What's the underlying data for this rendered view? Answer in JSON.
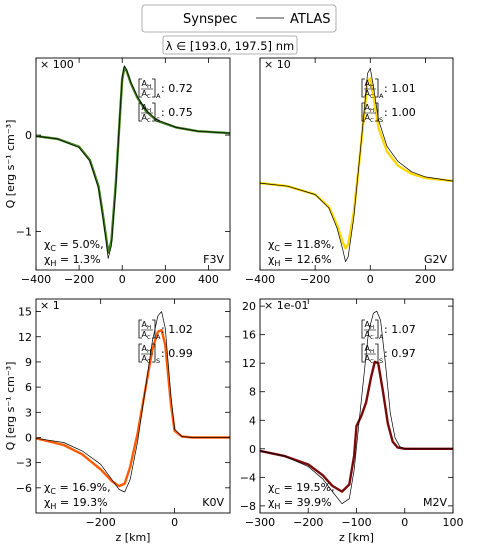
{
  "legend": {
    "items": [
      {
        "name": "Synspec",
        "kind": "gradient",
        "colors": [
          "#9acd32",
          "#ffd700",
          "#ff6a00",
          "#8b0000"
        ]
      },
      {
        "name": "ATLAS",
        "kind": "line",
        "color": "#000000"
      }
    ]
  },
  "wavelength_label": "λ ∈ [193.0, 197.5] nm",
  "chart_data": [
    {
      "type": "line",
      "star": "F3V",
      "scale": "× 100",
      "ylabel": "Q [erg s⁻¹ cm⁻³]",
      "xlabel": "",
      "xlim": [
        -400,
        500
      ],
      "ylim": [
        -1.4,
        0.8
      ],
      "xticks": [
        -400,
        -200,
        0,
        200,
        400
      ],
      "xtick_labels": [
        "−400",
        "−200",
        "0",
        "200",
        "400"
      ],
      "yticks": [
        -1,
        0
      ],
      "ytick_labels": [
        "−1",
        "0"
      ],
      "ratio_A": "0.72",
      "ratio_S": "0.75",
      "chi_C": "χC = 5.0%,",
      "chi_H": "χH = 1.3%",
      "synspec_color": "#3f7f1c",
      "series": [
        {
          "name": "ATLAS",
          "x": [
            -400,
            -300,
            -200,
            -150,
            -110,
            -90,
            -75,
            -65,
            -50,
            -30,
            -10,
            0,
            10,
            20,
            40,
            70,
            110,
            160,
            250,
            350,
            500
          ],
          "y": [
            -0.01,
            -0.04,
            -0.13,
            -0.27,
            -0.55,
            -0.85,
            -1.1,
            -1.28,
            -1.15,
            -0.55,
            0.25,
            0.6,
            0.72,
            0.68,
            0.55,
            0.4,
            0.26,
            0.16,
            0.08,
            0.04,
            0.02
          ]
        },
        {
          "name": "Synspec",
          "x": [
            -400,
            -300,
            -200,
            -150,
            -110,
            -90,
            -75,
            -65,
            -50,
            -30,
            -10,
            0,
            10,
            20,
            40,
            70,
            110,
            160,
            250,
            350,
            500
          ],
          "y": [
            -0.01,
            -0.04,
            -0.12,
            -0.26,
            -0.53,
            -0.82,
            -1.06,
            -1.22,
            -1.1,
            -0.5,
            0.23,
            0.58,
            0.7,
            0.67,
            0.54,
            0.39,
            0.25,
            0.15,
            0.08,
            0.04,
            0.02
          ]
        }
      ]
    },
    {
      "type": "line",
      "star": "G2V",
      "scale": "× 10",
      "ylabel": "",
      "xlabel": "",
      "xlim": [
        -400,
        300
      ],
      "ylim": [
        -0.85,
        1.2
      ],
      "xticks": [
        -400,
        -200,
        0,
        200
      ],
      "xtick_labels": [
        "−400",
        "−200",
        "0",
        "200"
      ],
      "yticks": [],
      "ytick_labels": [],
      "ratio_A": "1.01",
      "ratio_S": "1.00",
      "chi_C": "χC = 11.8%,",
      "chi_H": "χH = 12.6%",
      "synspec_color": "#ffd700",
      "series": [
        {
          "name": "ATLAS",
          "x": [
            -400,
            -300,
            -200,
            -150,
            -120,
            -100,
            -90,
            -80,
            -60,
            -40,
            -20,
            -10,
            0,
            10,
            30,
            60,
            100,
            150,
            200,
            300
          ],
          "y": [
            -0.01,
            -0.04,
            -0.12,
            -0.25,
            -0.45,
            -0.65,
            -0.77,
            -0.72,
            -0.35,
            0.2,
            0.75,
            1.05,
            1.1,
            0.95,
            0.6,
            0.35,
            0.2,
            0.1,
            0.05,
            0.01
          ]
        },
        {
          "name": "Synspec",
          "x": [
            -400,
            -300,
            -200,
            -150,
            -120,
            -100,
            -90,
            -80,
            -60,
            -40,
            -20,
            -10,
            0,
            10,
            30,
            60,
            100,
            150,
            200,
            300
          ],
          "y": [
            -0.01,
            -0.04,
            -0.12,
            -0.24,
            -0.42,
            -0.58,
            -0.64,
            -0.6,
            -0.3,
            0.2,
            0.72,
            0.98,
            1.0,
            0.85,
            0.52,
            0.3,
            0.16,
            0.08,
            0.04,
            0.01
          ]
        }
      ]
    },
    {
      "type": "line",
      "star": "K0V",
      "scale": "× 1",
      "ylabel": "Q [erg s⁻¹ cm⁻³]",
      "xlabel": "z [km]",
      "xlim": [
        -375,
        150
      ],
      "ylim": [
        -9,
        16.5
      ],
      "xticks": [
        -200,
        0
      ],
      "xtick_labels": [
        "−200",
        "0"
      ],
      "yticks": [
        -6,
        -3,
        0,
        3,
        6,
        9,
        12,
        15
      ],
      "ytick_labels": [
        "−6",
        "−3",
        "0",
        "3",
        "6",
        "9",
        "12",
        "15"
      ],
      "ratio_A": "1.02",
      "ratio_S": "0.99",
      "chi_C": "χC = 16.9%,",
      "chi_H": "χH = 19.3%",
      "synspec_color": "#ff5a00",
      "series": [
        {
          "name": "ATLAS",
          "x": [
            -375,
            -300,
            -250,
            -200,
            -170,
            -150,
            -135,
            -120,
            -100,
            -80,
            -60,
            -45,
            -35,
            -25,
            -10,
            0,
            20,
            50,
            150
          ],
          "y": [
            -0.1,
            -0.6,
            -1.6,
            -3.2,
            -5.0,
            -6.2,
            -6.5,
            -5.0,
            -0.5,
            5.5,
            11.5,
            14.5,
            15.0,
            13.0,
            5.0,
            1.0,
            0.1,
            0.0,
            0.0
          ]
        },
        {
          "name": "Synspec",
          "x": [
            -375,
            -300,
            -250,
            -200,
            -170,
            -150,
            -135,
            -120,
            -100,
            -80,
            -60,
            -45,
            -35,
            -25,
            -10,
            0,
            20,
            50,
            150
          ],
          "y": [
            -0.1,
            -0.9,
            -2.0,
            -3.8,
            -5.2,
            -5.8,
            -5.5,
            -3.5,
            0.5,
            5.5,
            10.5,
            12.6,
            12.8,
            11.0,
            4.0,
            0.8,
            0.1,
            0.0,
            0.0
          ]
        }
      ]
    },
    {
      "type": "line",
      "star": "M2V",
      "scale": "× 1e-01",
      "ylabel": "",
      "xlabel": "z [km]",
      "xlim": [
        -300,
        100
      ],
      "ylim": [
        -9,
        21
      ],
      "xticks": [
        -300,
        -200,
        -100,
        0,
        100
      ],
      "xtick_labels": [
        "−300",
        "−200",
        "−100",
        "0",
        "100"
      ],
      "yticks": [
        -8,
        -4,
        0,
        4,
        8,
        12,
        16,
        20
      ],
      "ytick_labels": [
        "−8",
        "−4",
        "0",
        "4",
        "8",
        "12",
        "16",
        "20"
      ],
      "ratio_A": "1.07",
      "ratio_S": "0.97",
      "chi_C": "χC = 19.5%,",
      "chi_H": "χH = 39.9%",
      "synspec_color": "#7a0a0a",
      "series": [
        {
          "name": "ATLAS",
          "x": [
            -300,
            -250,
            -200,
            -170,
            -150,
            -130,
            -115,
            -105,
            -95,
            -85,
            -75,
            -65,
            -58,
            -50,
            -40,
            -30,
            -20,
            -10,
            0,
            100
          ],
          "y": [
            -0.3,
            -1.0,
            -2.5,
            -4.2,
            -6.0,
            -7.7,
            -7.0,
            -3.0,
            3.5,
            10.0,
            16.5,
            19.0,
            19.3,
            18.0,
            12.0,
            5.0,
            1.5,
            0.3,
            0.0,
            0.0
          ]
        },
        {
          "name": "Synspec",
          "x": [
            -300,
            -250,
            -200,
            -170,
            -150,
            -130,
            -115,
            -105,
            -100,
            -90,
            -80,
            -70,
            -62,
            -55,
            -45,
            -35,
            -25,
            -15,
            0,
            100
          ],
          "y": [
            -0.3,
            -1.0,
            -2.2,
            -3.7,
            -5.2,
            -6.0,
            -5.0,
            -1.0,
            3.2,
            4.6,
            6.5,
            10.0,
            12.2,
            12.0,
            8.0,
            3.5,
            1.0,
            0.2,
            0.0,
            0.0
          ]
        }
      ]
    }
  ]
}
